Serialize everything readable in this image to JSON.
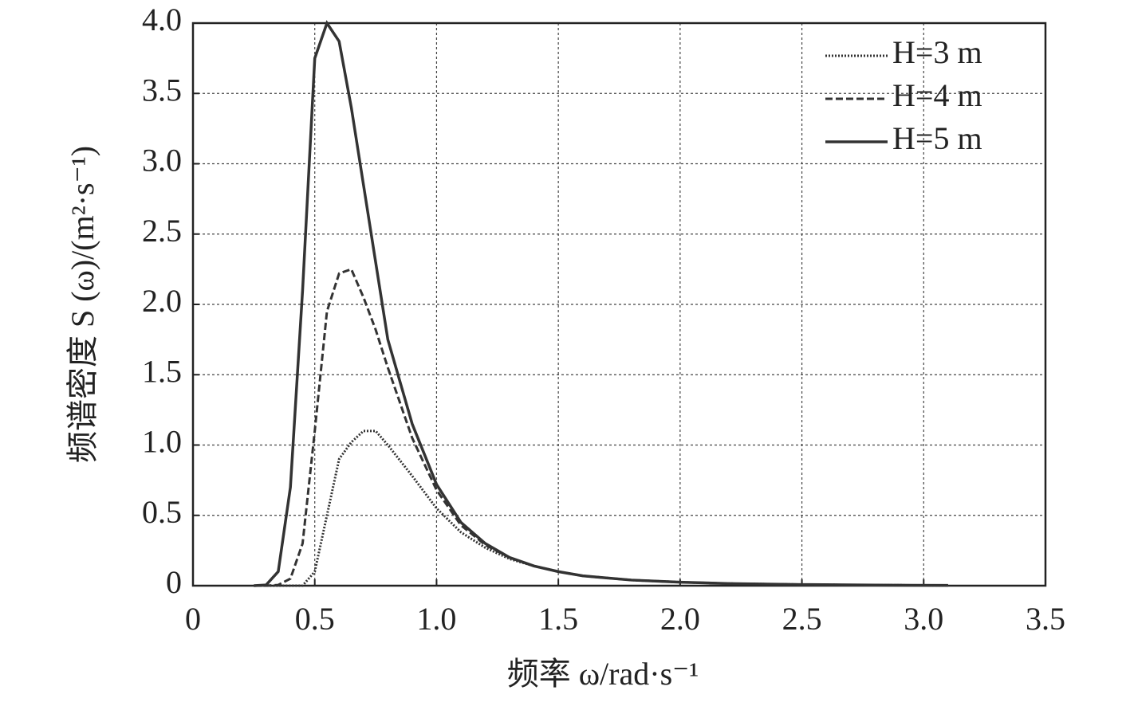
{
  "chart_data": {
    "type": "line",
    "xlabel": "频率 ω/rad·s⁻¹",
    "ylabel": "频谱密度 S (ω)/(m²·s⁻¹)",
    "x": [
      0.25,
      0.3,
      0.35,
      0.4,
      0.45,
      0.5,
      0.55,
      0.6,
      0.65,
      0.7,
      0.75,
      0.8,
      0.9,
      1.0,
      1.1,
      1.2,
      1.3,
      1.4,
      1.5,
      1.6,
      1.8,
      2.0,
      2.2,
      2.5,
      2.8,
      3.1
    ],
    "series": [
      {
        "name": "H=3 m",
        "color": "#333333",
        "linestyle": "dotted",
        "values": [
          0,
          0,
          0,
          0,
          0,
          0.1,
          0.5,
          0.9,
          1.02,
          1.1,
          1.1,
          1.0,
          0.78,
          0.55,
          0.38,
          0.27,
          0.19,
          0.14,
          0.1,
          0.07,
          0.04,
          0.025,
          0.015,
          0.008,
          0.004,
          0.002
        ]
      },
      {
        "name": "H=4 m",
        "color": "#333333",
        "linestyle": "dashed",
        "values": [
          0,
          0,
          0.005,
          0.05,
          0.3,
          1.1,
          1.95,
          2.22,
          2.25,
          2.05,
          1.82,
          1.55,
          1.05,
          0.68,
          0.43,
          0.29,
          0.2,
          0.14,
          0.1,
          0.07,
          0.04,
          0.025,
          0.015,
          0.008,
          0.004,
          0.002
        ]
      },
      {
        "name": "H=5 m",
        "color": "#333333",
        "linestyle": "solid",
        "values": [
          0,
          0.005,
          0.1,
          0.7,
          2.1,
          3.75,
          4.0,
          3.87,
          3.4,
          2.85,
          2.3,
          1.75,
          1.15,
          0.72,
          0.45,
          0.3,
          0.2,
          0.14,
          0.1,
          0.07,
          0.04,
          0.025,
          0.015,
          0.008,
          0.004,
          0.002
        ]
      }
    ],
    "xlim": [
      0,
      3.5
    ],
    "ylim": [
      0,
      4
    ],
    "xticks": [
      0,
      0.5,
      {
        "value": 1,
        "label": "1.0"
      },
      1.5,
      {
        "value": 2,
        "label": "2.0"
      },
      2.5,
      {
        "value": 3,
        "label": "3.0"
      },
      3.5
    ],
    "yticks": [
      0,
      0.5,
      {
        "value": 1,
        "label": "1.0"
      },
      1.5,
      {
        "value": 2,
        "label": "2.0"
      },
      2.5,
      {
        "value": 3,
        "label": "3.0"
      },
      3.5,
      {
        "value": 4,
        "label": "4.0"
      }
    ],
    "grid": true,
    "legend": "upper right"
  }
}
